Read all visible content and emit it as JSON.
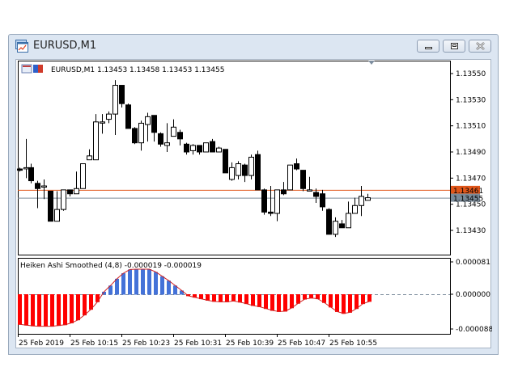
{
  "window": {
    "title": "EURUSD,M1",
    "buttons": {
      "minimize": "minimize",
      "restore": "restore",
      "close": "close"
    }
  },
  "chart": {
    "header": "EURUSD,M1  1.13453 1.13458 1.13453 1.13455",
    "symbol": "EURUSD,M1",
    "ohlc": {
      "open": "1.13453",
      "high": "1.13458",
      "low": "1.13453",
      "close": "1.13455"
    },
    "ask_line": {
      "label": "1.13461",
      "color": "#e0561a"
    },
    "bid_line": {
      "label": "1.13455",
      "color": "#7a8a98"
    },
    "price_ticks": [
      "1.13550",
      "1.13530",
      "1.13510",
      "1.13490",
      "1.13470",
      "1.13450",
      "1.13430"
    ],
    "time_ticks": [
      "25 Feb 2019",
      "25 Feb 10:15",
      "25 Feb 10:23",
      "25 Feb 10:31",
      "25 Feb 10:39",
      "25 Feb 10:47",
      "25 Feb 10:55"
    ],
    "bull_color": "#ffffff",
    "bear_color": "#000000"
  },
  "indicator": {
    "label": "Heiken Ashi Smoothed (4,8) -0.000019 -0.000019",
    "name": "Heiken Ashi Smoothed",
    "params": "(4,8)",
    "values": [
      "-0.000019",
      "-0.000019"
    ],
    "ticks": [
      "0.000081",
      "0.000000",
      "-0.000088"
    ],
    "up_color": "#4472d8",
    "down_color": "#ff0000"
  },
  "chart_data": {
    "type": "candlestick",
    "title": "EURUSD,M1",
    "ylim": [
      1.13418,
      1.13558
    ],
    "candles": [
      [
        22,
        1.13477,
        1.13476,
        1.13478,
        1.13475
      ],
      [
        30,
        1.13478,
        1.13478,
        1.135,
        1.1347
      ],
      [
        36,
        1.13478,
        1.13468,
        1.13481,
        1.13466
      ],
      [
        44,
        1.13466,
        1.13462,
        1.13468,
        1.13447
      ],
      [
        52,
        1.13464,
        1.13464,
        1.13469,
        1.13454
      ],
      [
        60,
        1.1346,
        1.13437,
        1.1346,
        1.13437
      ],
      [
        68,
        1.13437,
        1.13446,
        1.1346,
        1.13437
      ],
      [
        76,
        1.13446,
        1.13461,
        1.13461,
        1.13445
      ],
      [
        84,
        1.13461,
        1.13458,
        1.13461,
        1.13456
      ],
      [
        92,
        1.13458,
        1.13462,
        1.13475,
        1.13458
      ],
      [
        100,
        1.13462,
        1.13481,
        1.13481,
        1.13462
      ],
      [
        108,
        1.13484,
        1.13487,
        1.13492,
        1.13484
      ],
      [
        116,
        1.13484,
        1.13513,
        1.13519,
        1.13484
      ],
      [
        124,
        1.13513,
        1.13513,
        1.13519,
        1.13504
      ],
      [
        132,
        1.13515,
        1.13519,
        1.13521,
        1.13512
      ],
      [
        140,
        1.13519,
        1.13541,
        1.13545,
        1.13503
      ],
      [
        148,
        1.13541,
        1.13527,
        1.13541,
        1.13524
      ],
      [
        156,
        1.13526,
        1.13508,
        1.13527,
        1.13508
      ],
      [
        164,
        1.13508,
        1.13497,
        1.13509,
        1.13496
      ],
      [
        172,
        1.13497,
        1.13512,
        1.13514,
        1.13491
      ],
      [
        180,
        1.13511,
        1.13517,
        1.1352,
        1.13498
      ],
      [
        188,
        1.13518,
        1.13505,
        1.13518,
        1.13498
      ],
      [
        196,
        1.13504,
        1.13496,
        1.13505,
        1.13494
      ],
      [
        204,
        1.13495,
        1.13497,
        1.13512,
        1.1349
      ],
      [
        212,
        1.13502,
        1.13509,
        1.13515,
        1.13502
      ],
      [
        220,
        1.13505,
        1.135,
        1.13507,
        1.13495
      ],
      [
        228,
        1.13496,
        1.1349,
        1.13497,
        1.13488
      ],
      [
        236,
        1.13491,
        1.13495,
        1.13496,
        1.13488
      ],
      [
        244,
        1.13495,
        1.1349,
        1.13495,
        1.13488
      ],
      [
        252,
        1.1349,
        1.13497,
        1.13497,
        1.1349
      ],
      [
        260,
        1.13498,
        1.1349,
        1.135,
        1.1349
      ],
      [
        268,
        1.1349,
        1.13493,
        1.13494,
        1.1349
      ],
      [
        276,
        1.13492,
        1.13474,
        1.13492,
        1.13474
      ],
      [
        284,
        1.13469,
        1.13478,
        1.13482,
        1.13468
      ],
      [
        292,
        1.13472,
        1.13481,
        1.13483,
        1.13469
      ],
      [
        300,
        1.1348,
        1.13472,
        1.13481,
        1.13467
      ],
      [
        308,
        1.13472,
        1.13486,
        1.13488,
        1.13469
      ],
      [
        316,
        1.13488,
        1.13461,
        1.13491,
        1.13461
      ],
      [
        324,
        1.13461,
        1.13444,
        1.13462,
        1.13442
      ],
      [
        332,
        1.13444,
        1.13443,
        1.13464,
        1.13441
      ],
      [
        340,
        1.13443,
        1.13461,
        1.13461,
        1.13437
      ],
      [
        348,
        1.13461,
        1.13458,
        1.13467,
        1.13457
      ],
      [
        356,
        1.13461,
        1.1348,
        1.1348,
        1.13461
      ],
      [
        364,
        1.13481,
        1.13477,
        1.13485,
        1.13476
      ],
      [
        372,
        1.13476,
        1.13462,
        1.13476,
        1.1346
      ],
      [
        380,
        1.13461,
        1.13461,
        1.13471,
        1.1346
      ],
      [
        388,
        1.13459,
        1.13456,
        1.13462,
        1.13451
      ],
      [
        396,
        1.13458,
        1.13448,
        1.13461,
        1.13445
      ],
      [
        404,
        1.13446,
        1.13427,
        1.13447,
        1.13427
      ],
      [
        412,
        1.13427,
        1.13437,
        1.1344,
        1.13425
      ],
      [
        420,
        1.13435,
        1.13432,
        1.13438,
        1.13432
      ],
      [
        428,
        1.13432,
        1.13443,
        1.13452,
        1.13432
      ],
      [
        436,
        1.13443,
        1.13449,
        1.13455,
        1.13443
      ],
      [
        444,
        1.13449,
        1.13456,
        1.13464,
        1.13441
      ],
      [
        452,
        1.13453,
        1.13455,
        1.13458,
        1.13453
      ]
    ],
    "indicator_histogram": {
      "zero_y": 0,
      "range": [
        -8.8e-05,
        8.1e-05
      ],
      "values": [
        -8e-05,
        -8.2e-05,
        -8.4e-05,
        -8.5e-05,
        -8.5e-05,
        -8.5e-05,
        -8.3e-05,
        -8.1e-05,
        -7.6e-05,
        -6.8e-05,
        -5.5e-05,
        -4e-05,
        -2e-05,
        8e-06,
        2.8e-05,
        5e-05,
        6.8e-05,
        8e-05,
        8.1e-05,
        8.1e-05,
        8.1e-05,
        7.2e-05,
        5.8e-05,
        4.4e-05,
        2.8e-05,
        1.2e-05,
        -4e-06,
        -8e-06,
        -1.2e-05,
        -1.6e-05,
        -1.9e-05,
        -2e-05,
        -2e-05,
        -1.8e-05,
        -2.1e-05,
        -2.5e-05,
        -3e-05,
        -3.3e-05,
        -3.8e-05,
        -4.3e-05,
        -4.6e-05,
        -4.5e-05,
        -3.6e-05,
        -2.4e-05,
        -1.3e-05,
        -1e-05,
        -1.2e-05,
        -2.2e-05,
        -3.4e-05,
        -4.6e-05,
        -5.1e-05,
        -4.8e-05,
        -3.8e-05,
        -2.5e-05,
        -1.9e-05
      ]
    }
  }
}
